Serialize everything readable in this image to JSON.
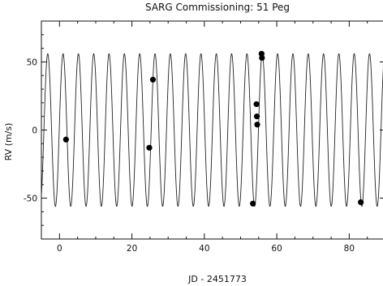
{
  "chart_data": {
    "type": "scatter",
    "title": "SARG Commissioning: 51 Peg",
    "xlabel": "JD - 2451773",
    "ylabel": "RV (m/s)",
    "xlim": [
      -5,
      90
    ],
    "ylim": [
      -80,
      80
    ],
    "x_ticks": [
      0,
      20,
      40,
      60,
      80
    ],
    "x_tick_labels": [
      "0",
      "20",
      "40",
      "60",
      "80"
    ],
    "y_ticks": [
      -50,
      0,
      50
    ],
    "y_tick_labels": [
      "-50",
      "0",
      "50"
    ],
    "x_minor_step": 5,
    "y_minor_step": 10,
    "grid": false,
    "model_curve": {
      "form": "sinusoid",
      "amplitude": 56,
      "period": 4.2308,
      "phase_zero_x": -4.3
    },
    "series": [
      {
        "points": [
          {
            "x": 1.8,
            "y": -7
          },
          {
            "x": 24.8,
            "y": -13
          },
          {
            "x": 25.8,
            "y": 37
          },
          {
            "x": 53.4,
            "y": -54
          },
          {
            "x": 54.4,
            "y": 19
          },
          {
            "x": 54.5,
            "y": 10
          },
          {
            "x": 54.6,
            "y": 4
          },
          {
            "x": 55.8,
            "y": 56
          },
          {
            "x": 55.9,
            "y": 53
          },
          {
            "x": 83.2,
            "y": -53
          }
        ]
      }
    ]
  }
}
